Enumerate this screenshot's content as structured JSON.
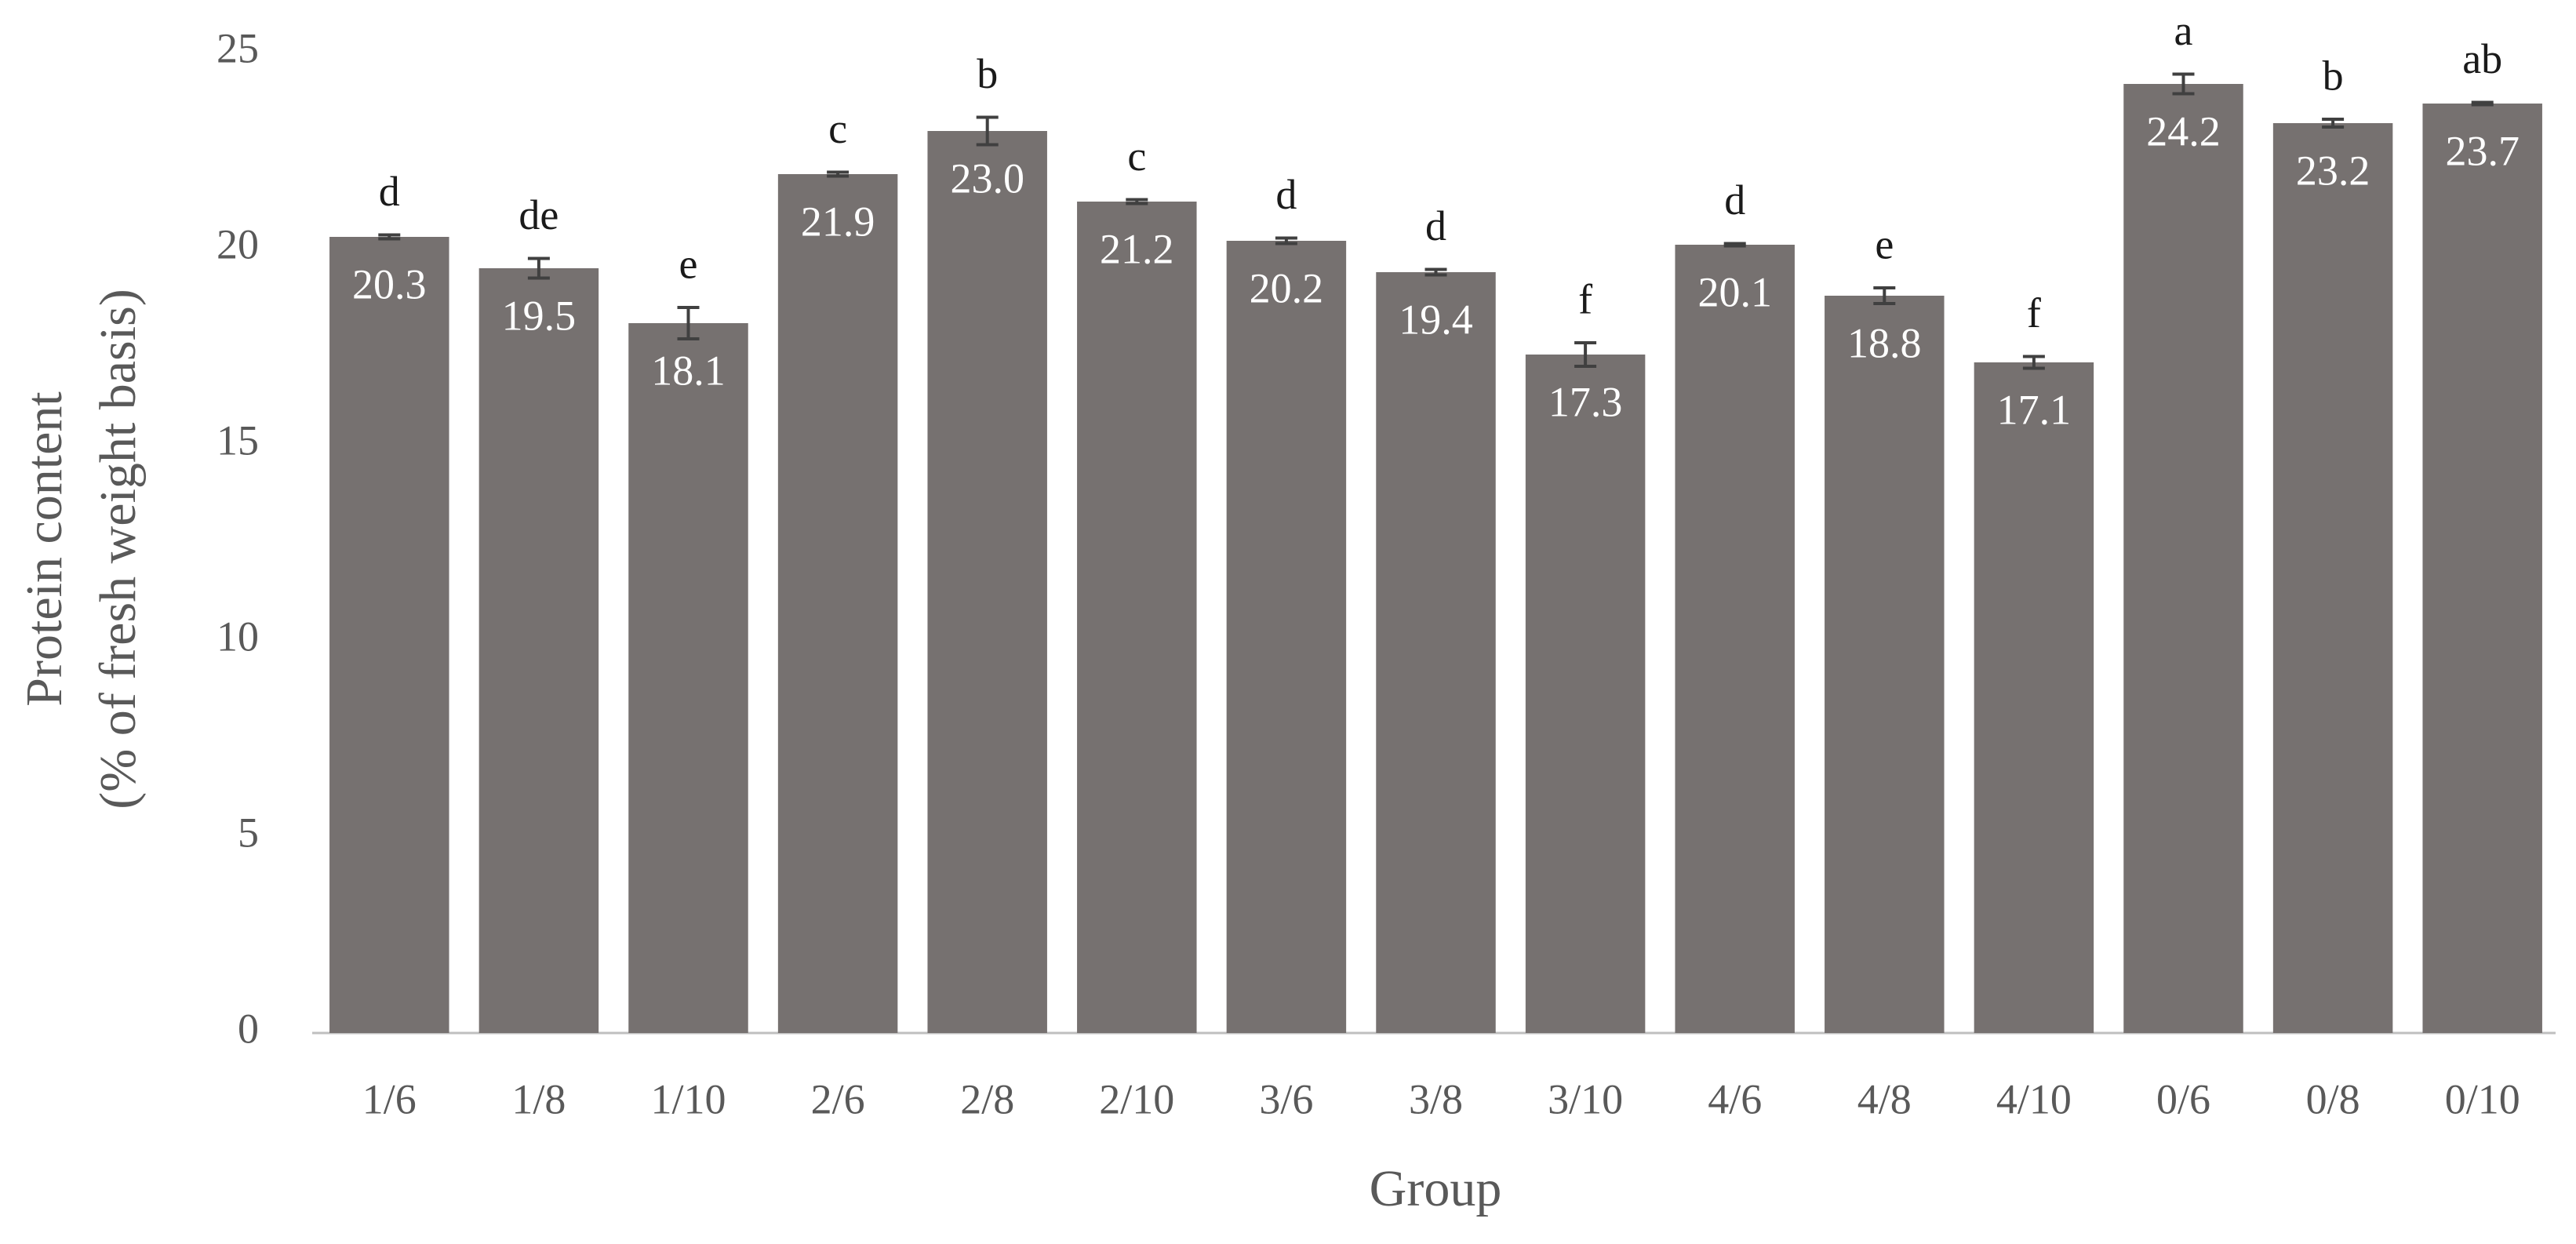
{
  "chart_data": {
    "type": "bar",
    "y_label": [
      "Protein content",
      "(% of fresh weight basis)"
    ],
    "x_label": "Group",
    "categories": [
      "1/6",
      "1/8",
      "1/10",
      "2/6",
      "2/8",
      "2/10",
      "3/6",
      "3/8",
      "3/10",
      "4/6",
      "4/8",
      "4/10",
      "0/6",
      "0/8",
      "0/10"
    ],
    "values": [
      20.3,
      19.5,
      18.1,
      21.9,
      23.0,
      21.2,
      20.2,
      19.4,
      17.3,
      20.1,
      18.8,
      17.1,
      24.2,
      23.2,
      23.7
    ],
    "value_labels": [
      "20.3",
      "19.5",
      "18.1",
      "21.9",
      "23.0",
      "21.2",
      "20.2",
      "19.4",
      "17.3",
      "20.1",
      "18.8",
      "17.1",
      "24.2",
      "23.2",
      "23.7"
    ],
    "errors": [
      0.05,
      0.25,
      0.4,
      0.05,
      0.35,
      0.05,
      0.07,
      0.07,
      0.3,
      0.03,
      0.2,
      0.15,
      0.25,
      0.1,
      0.03
    ],
    "annotations": [
      "d",
      "de",
      "e",
      "c",
      "b",
      "c",
      "d",
      "d",
      "f",
      "d",
      "e",
      "f",
      "a",
      "b",
      "ab"
    ],
    "color": "#767170",
    "ylim": [
      0,
      25
    ],
    "yticks": [
      0,
      5,
      10,
      15,
      20,
      25
    ],
    "grid": false
  }
}
